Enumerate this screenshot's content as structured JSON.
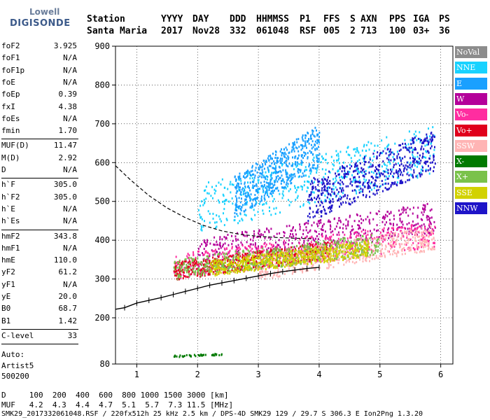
{
  "logo": {
    "line1": "Lowell",
    "line2": "DIGISONDE"
  },
  "header": {
    "labels": [
      "Station",
      "YYYY",
      "DAY",
      "DDD",
      "HHMMSS",
      "P1",
      "FFS",
      "S",
      "AXN",
      "PPS",
      "IGA",
      "PS"
    ],
    "values": [
      "Santa Maria",
      "2017",
      "Nov28",
      "332",
      "061048",
      "RSF",
      "005",
      "2",
      "713",
      "100",
      "03+",
      "36"
    ]
  },
  "params": [
    {
      "k": "foF2",
      "v": "3.925"
    },
    {
      "k": "foF1",
      "v": "N/A"
    },
    {
      "k": "foF1p",
      "v": "N/A"
    },
    {
      "k": "foE",
      "v": "N/A"
    },
    {
      "k": "foEp",
      "v": "0.39"
    },
    {
      "k": "fxI",
      "v": "4.38"
    },
    {
      "k": "foEs",
      "v": "N/A"
    },
    {
      "k": "fmin",
      "v": "1.70"
    },
    {
      "k": "MUF(D)",
      "v": "11.47"
    },
    {
      "k": "M(D)",
      "v": "2.92"
    },
    {
      "k": "D",
      "v": "N/A"
    },
    {
      "k": "h`F",
      "v": "305.0"
    },
    {
      "k": "h`F2",
      "v": "305.0"
    },
    {
      "k": "h`E",
      "v": "N/A"
    },
    {
      "k": "h`Es",
      "v": "N/A"
    },
    {
      "k": "hmF2",
      "v": "343.8"
    },
    {
      "k": "hmF1",
      "v": "N/A"
    },
    {
      "k": "hmE",
      "v": "110.0"
    },
    {
      "k": "yF2",
      "v": "61.2"
    },
    {
      "k": "yF1",
      "v": "N/A"
    },
    {
      "k": "yE",
      "v": "20.0"
    },
    {
      "k": "B0",
      "v": "68.7"
    },
    {
      "k": "B1",
      "v": "1.42"
    },
    {
      "k": "C-level",
      "v": "33"
    }
  ],
  "auto": [
    "Auto:",
    "Artist5",
    "500200"
  ],
  "legend": [
    {
      "label": "NoVal",
      "color": "#8c8c8c"
    },
    {
      "label": "NNE",
      "color": "#19d2ff"
    },
    {
      "label": "E",
      "color": "#1aa0ff"
    },
    {
      "label": "W",
      "color": "#b4009a"
    },
    {
      "label": "Vo-",
      "color": "#ff2da0"
    },
    {
      "label": "Vo+",
      "color": "#e0001c"
    },
    {
      "label": "SSW",
      "color": "#ffb4b4"
    },
    {
      "label": "X-",
      "color": "#007a00"
    },
    {
      "label": "X+",
      "color": "#7ac24a"
    },
    {
      "label": "SSE",
      "color": "#d2d200"
    },
    {
      "label": "NNW",
      "color": "#1e14c8"
    }
  ],
  "footer": {
    "d_row": "D     100  200  400  600  800 1000 1500 3000 [km]",
    "muf_row": "MUF   4.2  4.3  4.4  4.7  5.1  5.7  7.3 11.5 [MHz]",
    "file_row": "SMK29_2017332061048.RSF / 220fx512h 25 kHz 2.5 km / DPS-4D SMK29 129 / 29.7 S 306.3 E Ion2Png 1.3.20"
  },
  "chart_data": {
    "type": "scatter",
    "title": "",
    "xlabel": "",
    "ylabel": "",
    "xlim": [
      0.65,
      6.2
    ],
    "ylim": [
      80,
      900
    ],
    "x_ticks": [
      1,
      2,
      3,
      4,
      5,
      6
    ],
    "y_ticks": [
      80,
      200,
      300,
      400,
      500,
      600,
      700,
      800,
      900
    ],
    "grid": true,
    "legend_position": "right",
    "dashed_curve": {
      "x": [
        0.65,
        0.9,
        1.2,
        1.5,
        1.8,
        2.1,
        2.4,
        2.7,
        3.0,
        3.3,
        3.6,
        3.9
      ],
      "y": [
        592,
        555,
        515,
        483,
        458,
        438,
        424,
        415,
        410,
        407,
        405,
        404
      ]
    },
    "trace_curve": {
      "x": [
        0.65,
        0.8,
        1.0,
        1.2,
        1.4,
        1.6,
        1.8,
        2.0,
        2.2,
        2.4,
        2.6,
        2.8,
        3.0,
        3.2,
        3.4,
        3.6,
        3.8,
        4.0
      ],
      "y": [
        222,
        226,
        238,
        245,
        252,
        260,
        268,
        276,
        284,
        290,
        296,
        302,
        308,
        314,
        319,
        323,
        327,
        330
      ]
    },
    "clusters": [
      {
        "series": "NNE",
        "x": [
          2.0,
          5.9
        ],
        "y": [
          420,
          700
        ]
      },
      {
        "series": "NNW",
        "x": [
          3.8,
          5.9
        ],
        "y": [
          450,
          690
        ]
      },
      {
        "series": "W",
        "x": [
          2.0,
          5.9
        ],
        "y": [
          330,
          500
        ]
      },
      {
        "series": "Vo-",
        "x": [
          1.6,
          5.9
        ],
        "y": [
          300,
          450
        ]
      },
      {
        "series": "Vo+",
        "x": [
          1.6,
          4.2
        ],
        "y": [
          300,
          400
        ]
      },
      {
        "series": "SSW",
        "x": [
          3.0,
          5.9
        ],
        "y": [
          300,
          440
        ]
      },
      {
        "series": "X+",
        "x": [
          1.6,
          5.0
        ],
        "y": [
          300,
          420
        ]
      },
      {
        "series": "SSE",
        "x": [
          2.2,
          4.8
        ],
        "y": [
          310,
          400
        ]
      },
      {
        "series": "E",
        "x": [
          2.6,
          4.0
        ],
        "y": [
          460,
          700
        ]
      },
      {
        "series": "X-",
        "x": [
          1.6,
          2.4
        ],
        "y": [
          100,
          110
        ]
      }
    ]
  }
}
